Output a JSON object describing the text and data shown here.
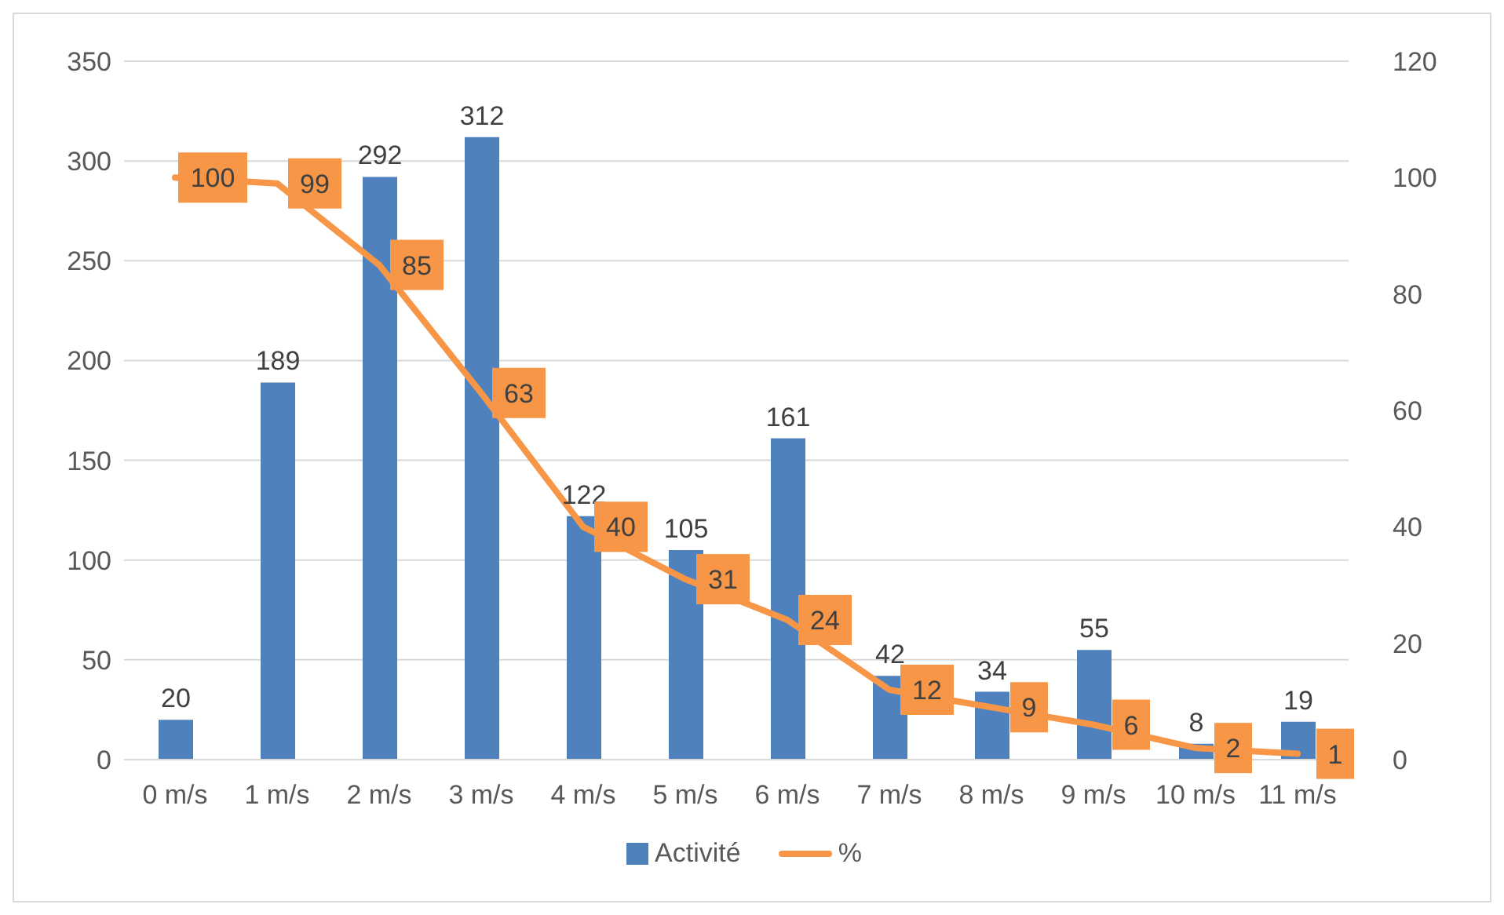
{
  "chart_data": {
    "type": "bar",
    "categories": [
      "0 m/s",
      "1 m/s",
      "2 m/s",
      "3 m/s",
      "4 m/s",
      "5 m/s",
      "6 m/s",
      "7 m/s",
      "8 m/s",
      "9 m/s",
      "10 m/s",
      "11 m/s"
    ],
    "series": [
      {
        "name": "Activité",
        "color": "#4f81bd",
        "values": [
          20,
          189,
          292,
          312,
          122,
          105,
          161,
          42,
          34,
          55,
          8,
          19
        ]
      },
      {
        "name": "%",
        "type": "line",
        "axis": "y2",
        "color": "#f79646",
        "values": [
          100,
          99,
          85,
          63,
          40,
          31,
          24,
          12,
          9,
          6,
          2,
          1
        ]
      }
    ],
    "ylim": [
      0,
      350
    ],
    "yticks": [
      0,
      50,
      100,
      150,
      200,
      250,
      300,
      350
    ],
    "y2lim": [
      0,
      120
    ],
    "y2ticks": [
      0,
      20,
      40,
      60,
      80,
      100,
      120
    ],
    "data_labels": true,
    "grid": "y",
    "legend": "bottom"
  }
}
